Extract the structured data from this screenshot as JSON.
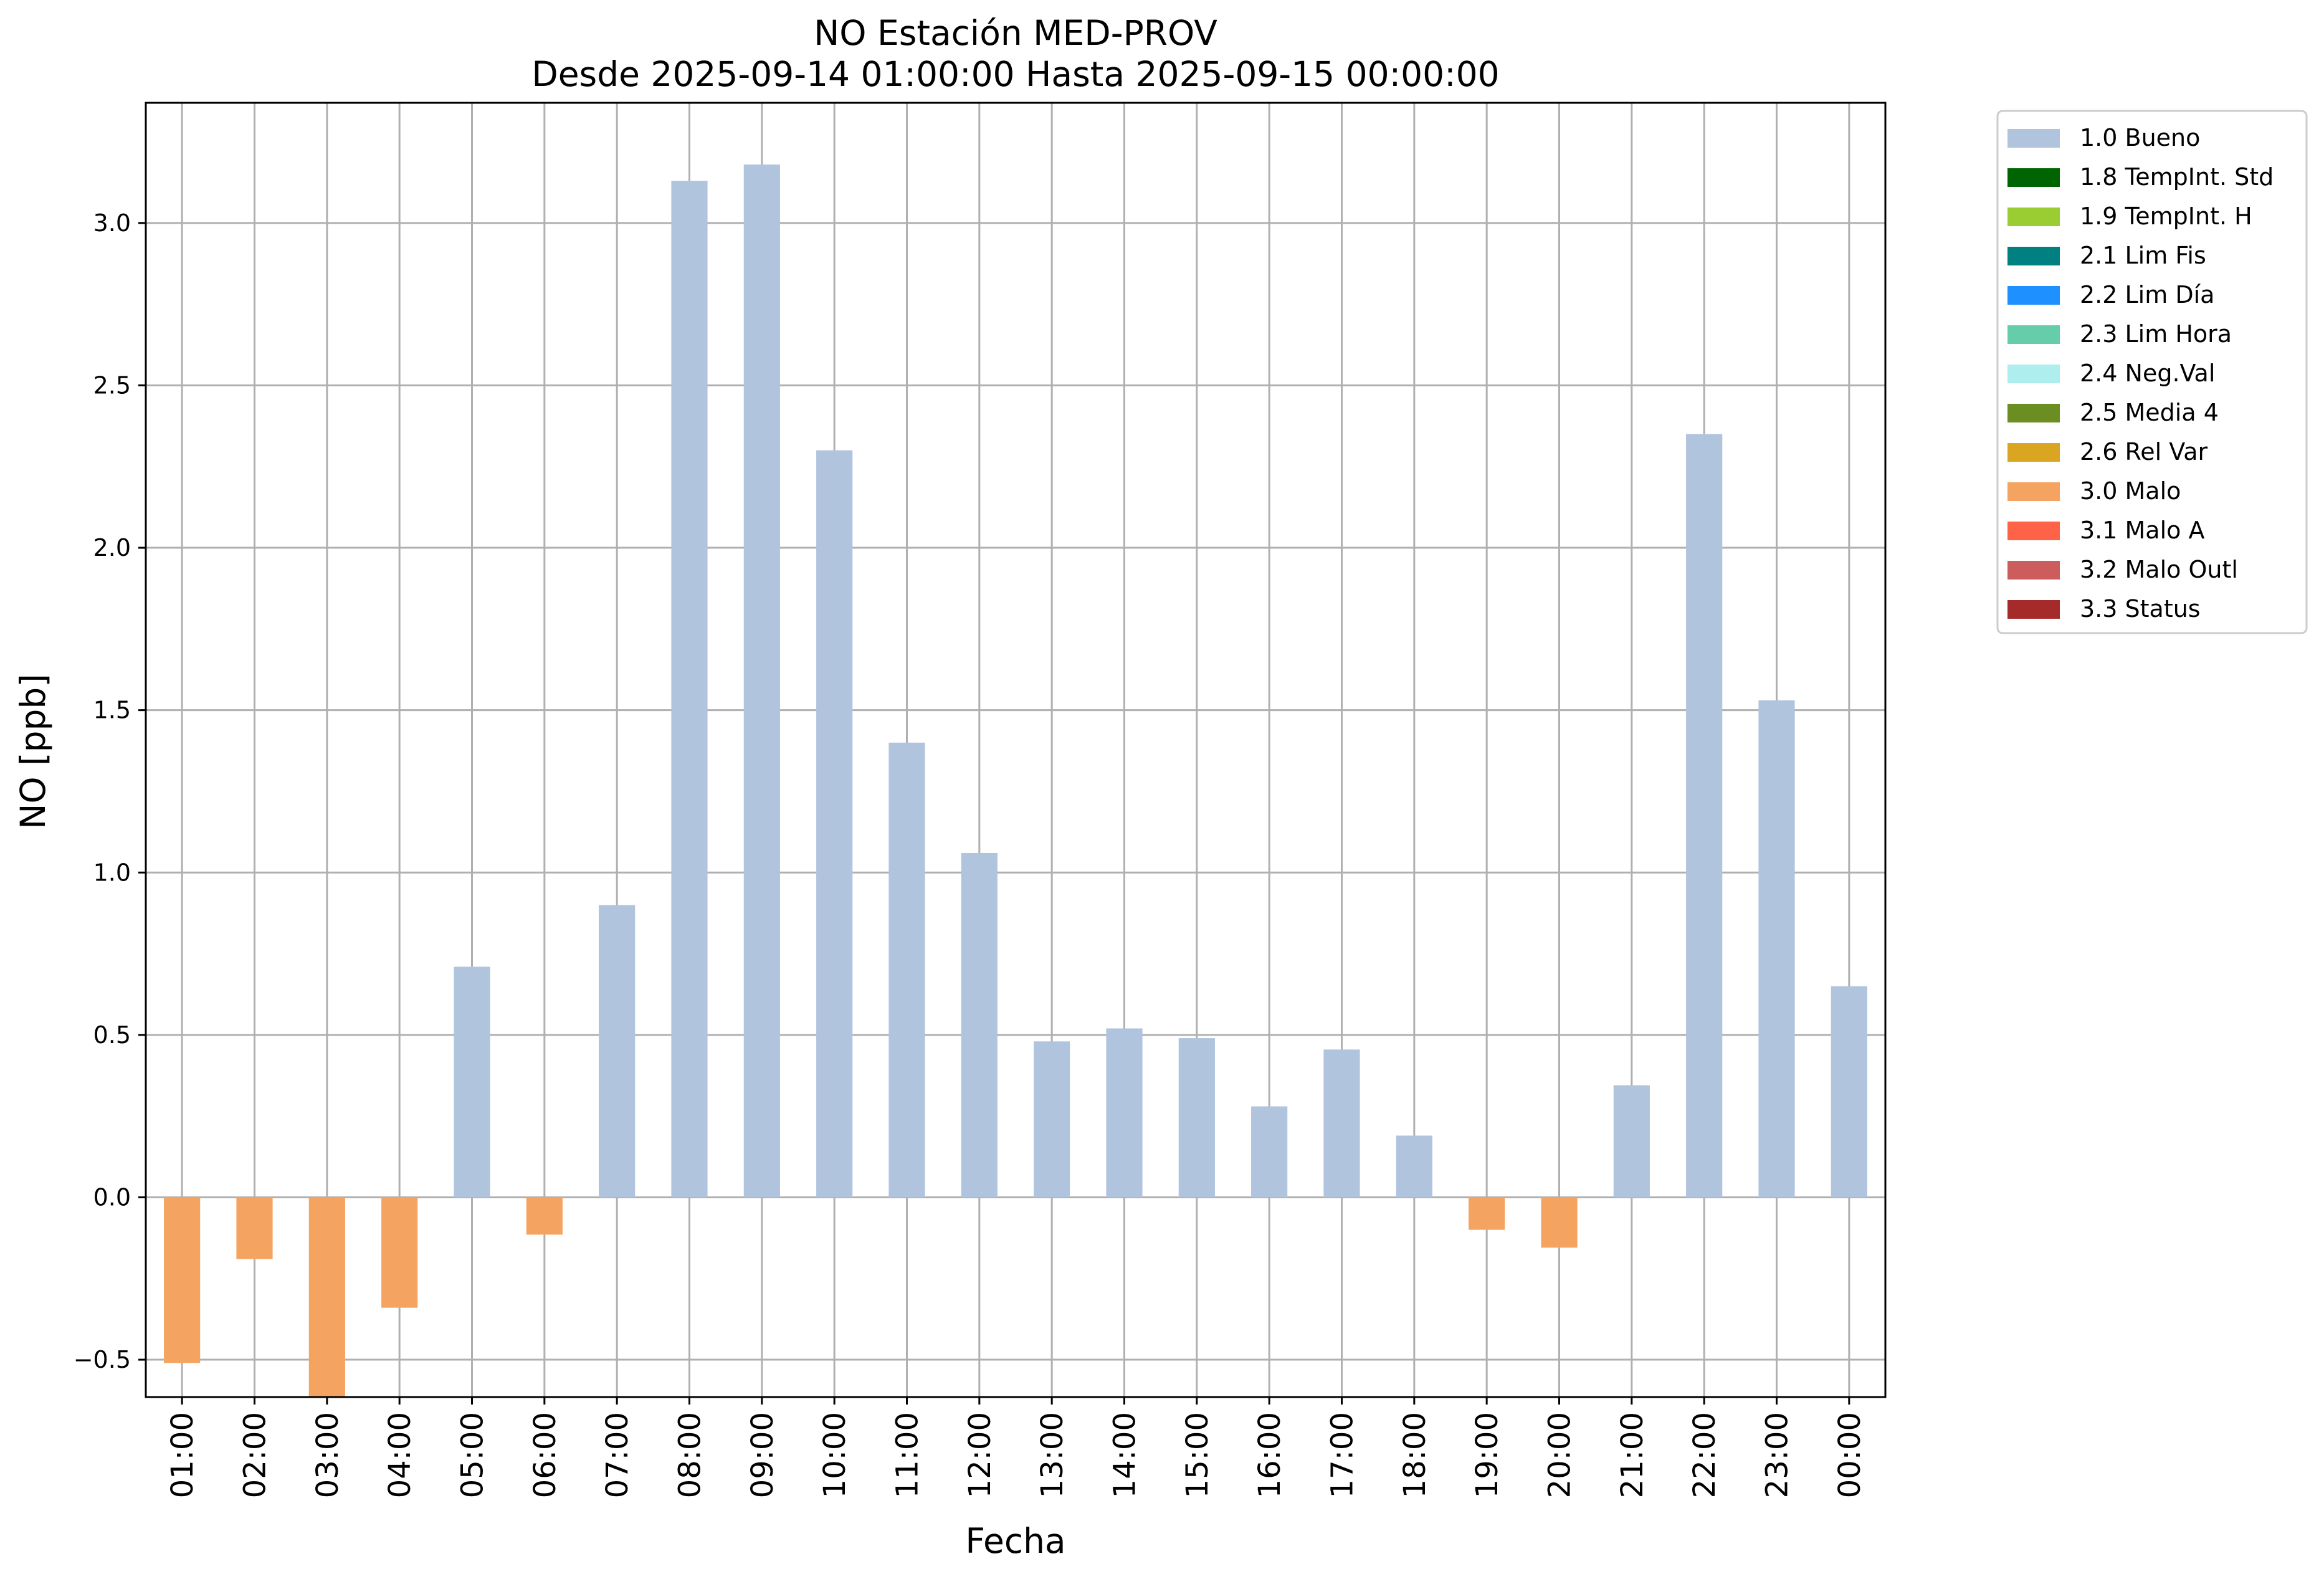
{
  "chart_data": {
    "type": "bar",
    "title": "NO Estación MED-PROV",
    "subtitle": "Desde 2025-09-14 01:00:00 Hasta 2025-09-15 00:00:00",
    "xlabel": "Fecha",
    "ylabel": "NO [ppb]",
    "ylim": [
      -0.615,
      3.37
    ],
    "yticks": [
      -0.5,
      0.0,
      0.5,
      1.0,
      1.5,
      2.0,
      2.5,
      3.0
    ],
    "ytick_labels": [
      "−0.5",
      "0.0",
      "0.5",
      "1.0",
      "1.5",
      "2.0",
      "2.5",
      "3.0"
    ],
    "grid": true,
    "legend_position": "outside-top-right",
    "categories": [
      "01:00",
      "02:00",
      "03:00",
      "04:00",
      "05:00",
      "06:00",
      "07:00",
      "08:00",
      "09:00",
      "10:00",
      "11:00",
      "12:00",
      "13:00",
      "14:00",
      "15:00",
      "16:00",
      "17:00",
      "18:00",
      "19:00",
      "20:00",
      "21:00",
      "22:00",
      "23:00",
      "00:00"
    ],
    "values": [
      -0.51,
      -0.19,
      -0.62,
      -0.34,
      0.71,
      -0.115,
      0.9,
      3.13,
      3.18,
      2.3,
      1.4,
      1.06,
      0.48,
      0.52,
      0.49,
      0.28,
      0.455,
      0.19,
      -0.1,
      -0.155,
      0.345,
      2.35,
      1.53,
      0.65
    ],
    "flags": [
      "3.0 Malo",
      "3.0 Malo",
      "3.0 Malo",
      "3.0 Malo",
      "1.0 Bueno",
      "3.0 Malo",
      "1.0 Bueno",
      "1.0 Bueno",
      "1.0 Bueno",
      "1.0 Bueno",
      "1.0 Bueno",
      "1.0 Bueno",
      "1.0 Bueno",
      "1.0 Bueno",
      "1.0 Bueno",
      "1.0 Bueno",
      "1.0 Bueno",
      "1.0 Bueno",
      "3.0 Malo",
      "3.0 Malo",
      "1.0 Bueno",
      "1.0 Bueno",
      "1.0 Bueno",
      "1.0 Bueno"
    ],
    "legend": [
      {
        "label": "1.0 Bueno",
        "color": "#b0c4de"
      },
      {
        "label": "1.8 TempInt. Std",
        "color": "#006400"
      },
      {
        "label": "1.9 TempInt. H",
        "color": "#9acd32"
      },
      {
        "label": "2.1 Lim Fis",
        "color": "#008080"
      },
      {
        "label": "2.2 Lim Día",
        "color": "#1e90ff"
      },
      {
        "label": "2.3 Lim Hora",
        "color": "#66cdaa"
      },
      {
        "label": "2.4 Neg.Val",
        "color": "#afeeee"
      },
      {
        "label": "2.5 Media 4",
        "color": "#6b8e23"
      },
      {
        "label": "2.6 Rel Var",
        "color": "#daa520"
      },
      {
        "label": "3.0 Malo",
        "color": "#f4a460"
      },
      {
        "label": "3.1 Malo A",
        "color": "#ff6347"
      },
      {
        "label": "3.2 Malo Outl",
        "color": "#cd5c5c"
      },
      {
        "label": "3.3 Status",
        "color": "#a52a2a"
      }
    ]
  }
}
